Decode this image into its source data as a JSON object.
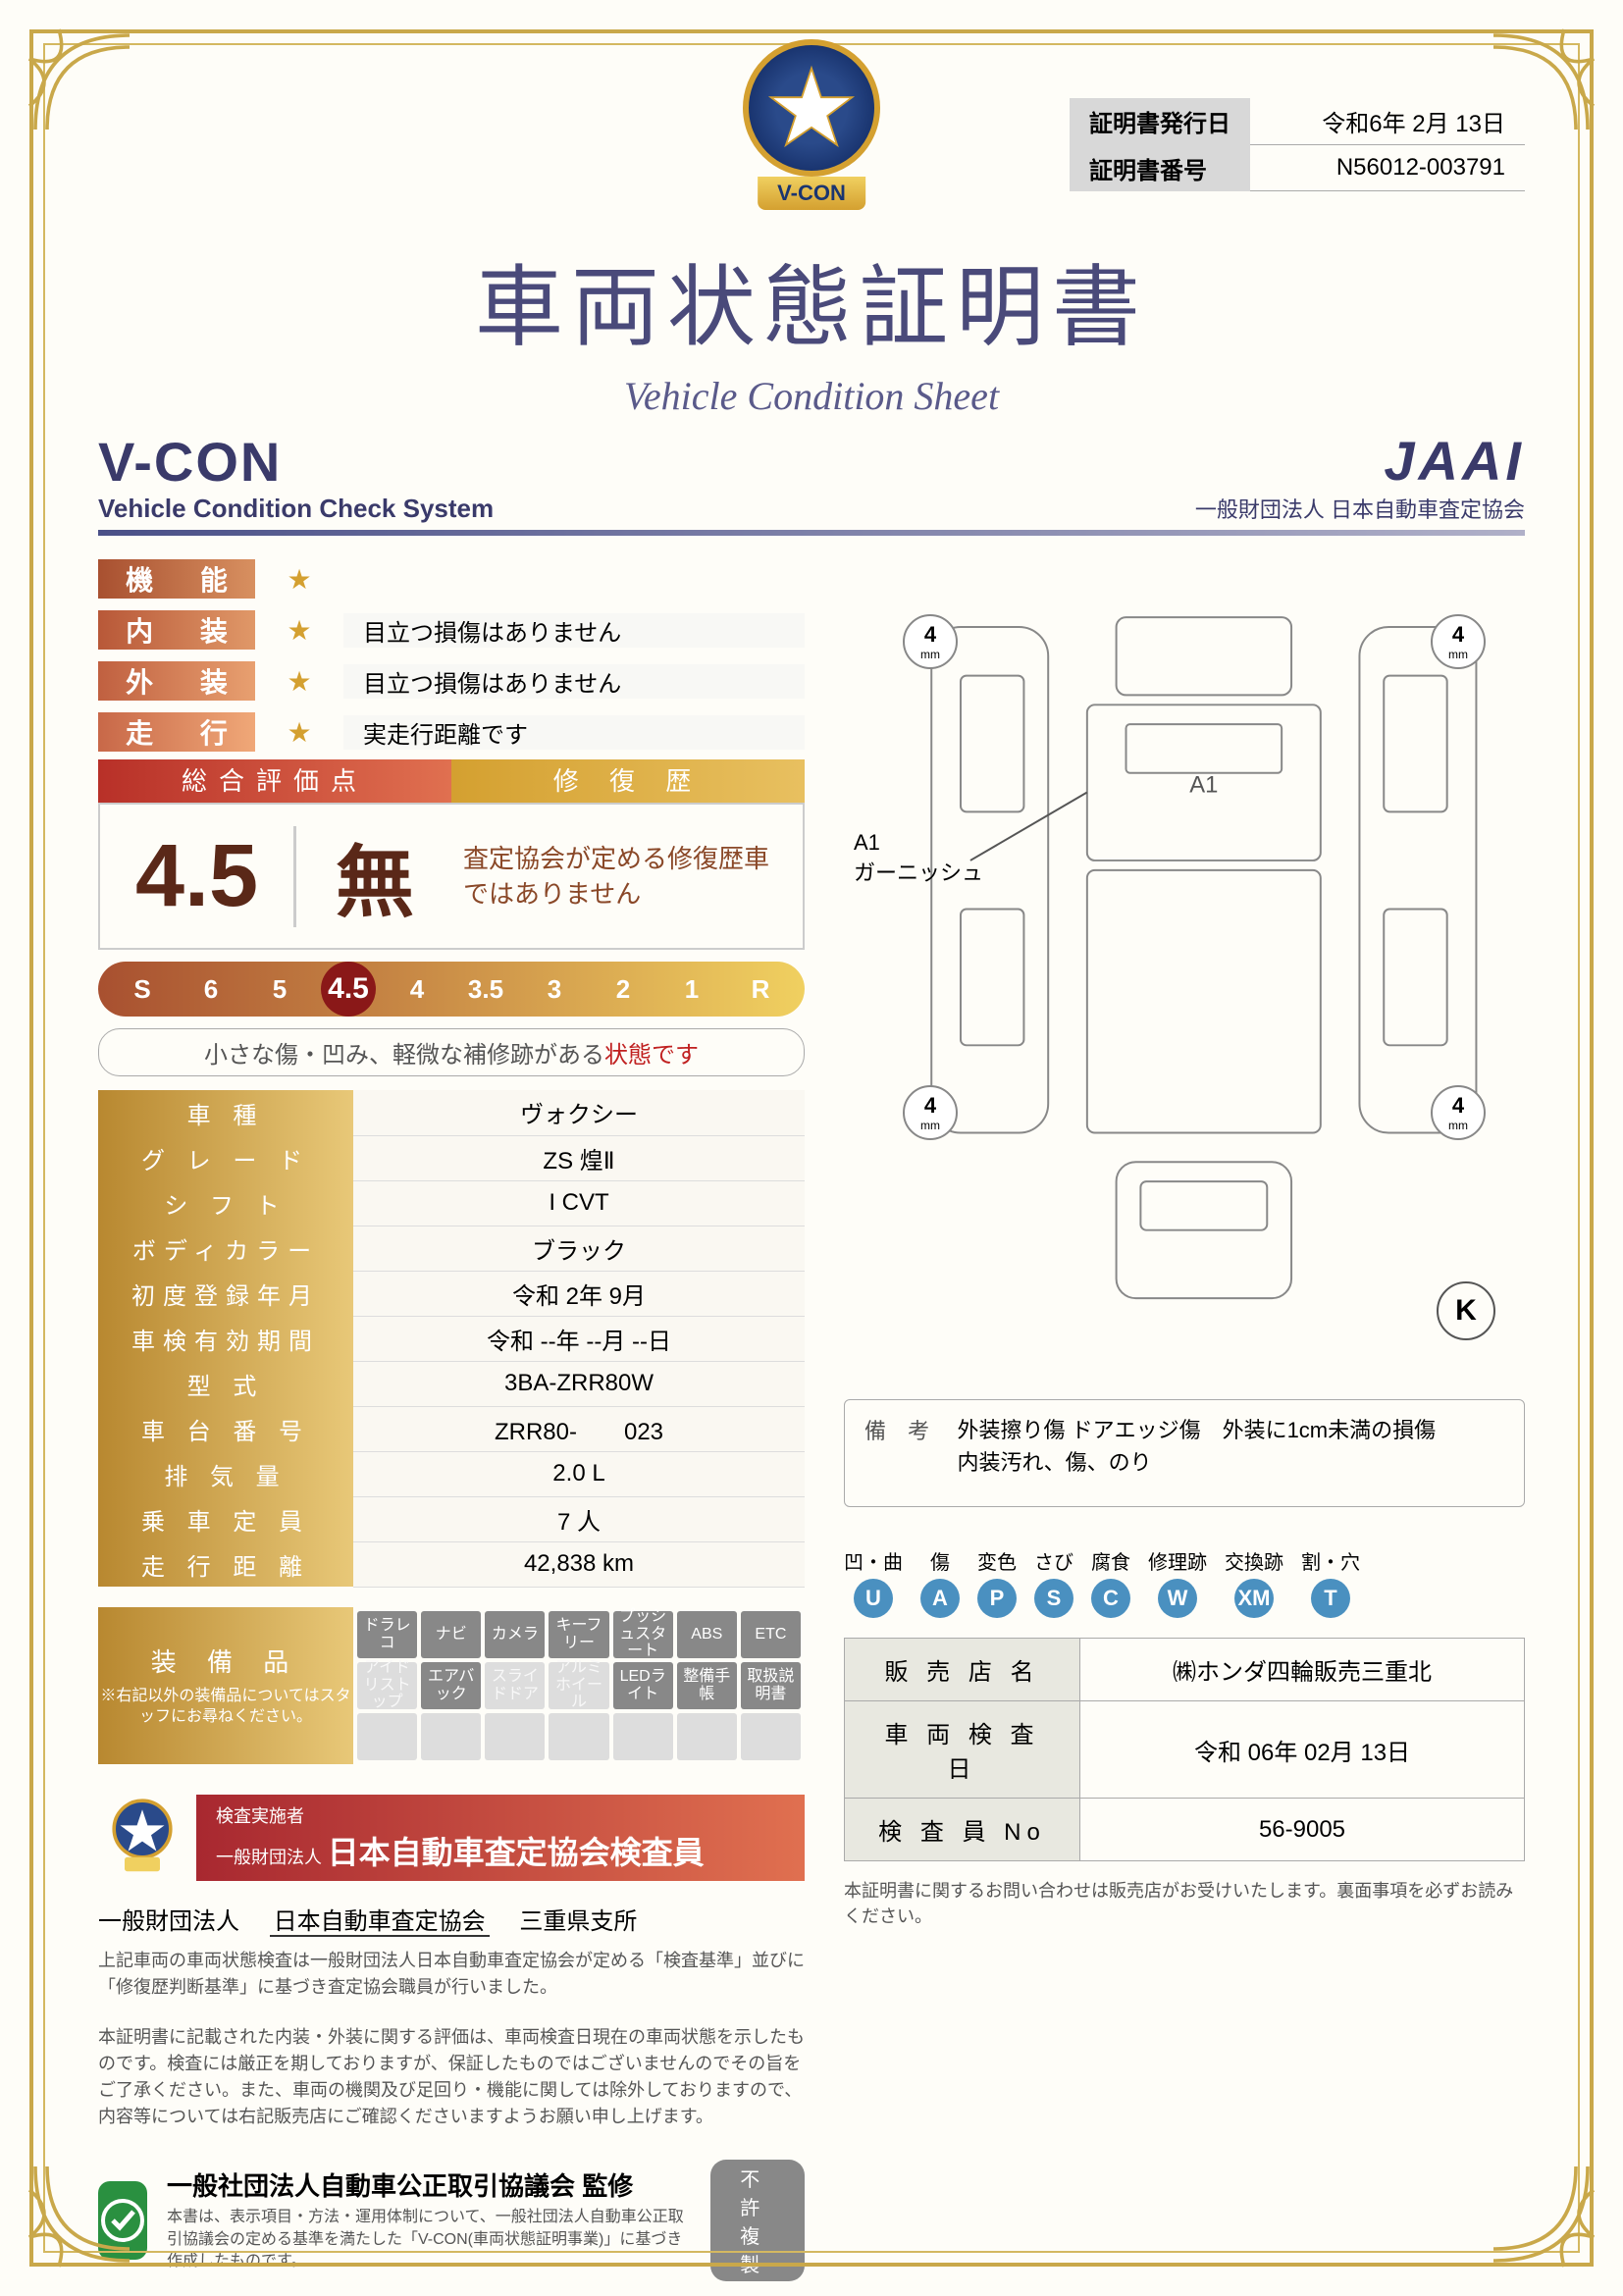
{
  "header": {
    "issue_date_label": "証明書発行日",
    "issue_date": "令和6年 2月 13日",
    "cert_no_label": "証明書番号",
    "cert_no": "N56012-003791"
  },
  "title_jp": "車両状態証明書",
  "title_en": "Vehicle Condition Sheet",
  "vcon": {
    "logo": "V-CON",
    "sub": "Vehicle Condition Check System"
  },
  "jaai": {
    "logo": "JAAI",
    "sub": "一般財団法人 日本自動車査定協会"
  },
  "badge_text": "V-CON",
  "ratings": [
    {
      "cat": "機 能",
      "stars": 1,
      "desc": ""
    },
    {
      "cat": "内 装",
      "stars": 1,
      "desc": "目立つ損傷はありません"
    },
    {
      "cat": "外 装",
      "stars": 1,
      "desc": "目立つ損傷はありません"
    },
    {
      "cat": "走 行",
      "stars": 1,
      "desc": "実走行距離です"
    }
  ],
  "score": {
    "head_left": "総合評価点",
    "head_right": "修 復 歴",
    "value": "4.5",
    "repair": "無",
    "repair_desc": "査定協会が定める修復歴車ではありません"
  },
  "grade_scale": [
    "S",
    "6",
    "5",
    "4.5",
    "4",
    "3.5",
    "3",
    "2",
    "1",
    "R"
  ],
  "grade_selected": "4.5",
  "grade_caption_pre": "小さな傷・凹み、軽微な補修跡がある",
  "grade_caption_red": "状態です",
  "specs": [
    {
      "k": "車 種",
      "v": "ヴォクシー"
    },
    {
      "k": "グ レ ー ド",
      "v": "ZS 煌Ⅱ"
    },
    {
      "k": "シ フ ト",
      "v": "I CVT"
    },
    {
      "k": "ボディカラー",
      "v": "ブラック"
    },
    {
      "k": "初度登録年月",
      "v": "令和 2年 9月"
    },
    {
      "k": "車検有効期間",
      "v": "令和 --年 --月 --日"
    },
    {
      "k": "型 式",
      "v": "3BA-ZRR80W"
    },
    {
      "k": "車 台 番 号",
      "v": "ZRR80-　　023"
    },
    {
      "k": "排 気 量",
      "v": "2.0 L"
    },
    {
      "k": "乗 車 定 員",
      "v": "7 人"
    },
    {
      "k": "走 行 距 離",
      "v": "42,838 km"
    }
  ],
  "equipment": {
    "label": "装 備 品",
    "note": "※右記以外の装備品についてはスタッフにお尋ねください。",
    "items": [
      {
        "t": "ドラレコ",
        "on": true
      },
      {
        "t": "ナビ",
        "on": true
      },
      {
        "t": "カメラ",
        "on": true
      },
      {
        "t": "キーフリー",
        "on": true
      },
      {
        "t": "プッシュスタート",
        "on": true
      },
      {
        "t": "ABS",
        "on": true
      },
      {
        "t": "ETC",
        "on": true
      },
      {
        "t": "アイドリストップ",
        "on": false
      },
      {
        "t": "エアバック",
        "on": true
      },
      {
        "t": "スライドドア",
        "on": false
      },
      {
        "t": "アルミホイール",
        "on": false
      },
      {
        "t": "LEDライト",
        "on": true
      },
      {
        "t": "整備手帳",
        "on": true
      },
      {
        "t": "取扱説明書",
        "on": true
      }
    ]
  },
  "inspector": {
    "pre": "検査実施者\n一般財団法人",
    "main": "日本自動車査定協会検査員"
  },
  "assoc_line": {
    "pre": "一般財団法人",
    "assoc": "日本自動車査定協会",
    "branch": "三重県支所"
  },
  "fineprint1": "上記車両の車両状態検査は一般財団法人日本自動車査定協会が定める「検査基準」並びに「修復歴判断基準」に基づき査定協会職員が行いました。",
  "fineprint2": "本証明書に記載された内装・外装に関する評価は、車両検査日現在の車両状態を示したものです。検査には厳正を期しておりますが、保証したものではございませんのでその旨をご了承ください。また、車両の機関及び足回り・機能に関しては除外しておりますので、内容等については右記販売店にご確認くださいますようお願い申し上げます。",
  "supervise": {
    "title": "一般社団法人自動車公正取引協議会 監修",
    "sub": "本書は、表示項目・方法・運用体制について、一般社団法人自動車公正取引協議会の定める基準を満たした「V-CON(車両状態証明事業)」に基づき作成したものです。"
  },
  "nocopy": "不許複製",
  "diagram": {
    "tires": [
      {
        "pos": "fl",
        "val": "4"
      },
      {
        "pos": "fr",
        "val": "4"
      },
      {
        "pos": "rl",
        "val": "4"
      },
      {
        "pos": "rr",
        "val": "4"
      }
    ],
    "a1_label": "A1\nガーニッシュ",
    "a1_mark": "A1",
    "k": "K"
  },
  "remarks": {
    "label": "備　考",
    "text": "外装擦り傷 ドアエッジ傷　外装に1cm未満の損傷\n内装汚れ、傷、のり"
  },
  "legend": [
    {
      "t": "凹・曲",
      "c": "U",
      "col": "#4a90c0"
    },
    {
      "t": "傷",
      "c": "A",
      "col": "#4a90c0"
    },
    {
      "t": "変色",
      "c": "P",
      "col": "#4a90c0"
    },
    {
      "t": "さび",
      "c": "S",
      "col": "#4a90c0"
    },
    {
      "t": "腐食",
      "c": "C",
      "col": "#4a90c0"
    },
    {
      "t": "修理跡",
      "c": "W",
      "col": "#4a90c0"
    },
    {
      "t": "交換跡",
      "c": "XM",
      "col": "#4a90c0"
    },
    {
      "t": "割・穴",
      "c": "T",
      "col": "#4a90c0"
    }
  ],
  "dealer": [
    {
      "k": "販 売 店 名",
      "v": "㈱ホンダ四輪販売三重北"
    },
    {
      "k": "車 両 検 査 日",
      "v": "令和 06年 02月 13日"
    },
    {
      "k": "検 査 員 No",
      "v": "56-9005"
    }
  ],
  "footer_note": "本証明書に関するお問い合わせは販売店がお受けいたします。裏面事項を必ずお読みください。",
  "colors": {
    "gold": "#c9a84a",
    "navy": "#3a3a6a",
    "brick": "#a85030"
  }
}
